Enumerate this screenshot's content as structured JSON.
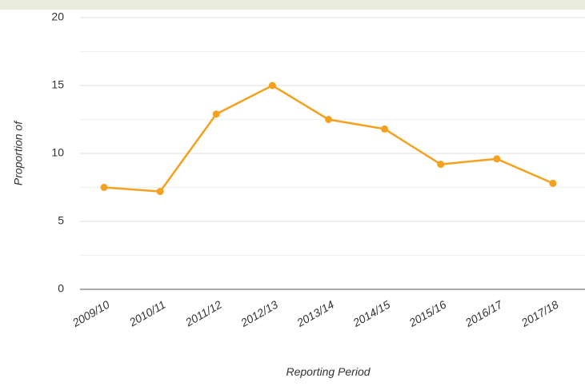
{
  "chart_data": {
    "type": "line",
    "y_label": "Proportion of",
    "x_label": "Reporting Period",
    "categories": [
      "2009/10",
      "2010/11",
      "2011/12",
      "2012/13",
      "2013/14",
      "2014/15",
      "2015/16",
      "2016/17",
      "2017/18"
    ],
    "series": [
      {
        "color": "#f4a11f",
        "values": [
          7.5,
          7.2,
          12.9,
          15.0,
          12.5,
          11.8,
          9.2,
          9.6,
          7.8
        ]
      }
    ],
    "ylim": [
      0,
      20
    ],
    "yticks": [
      0,
      5,
      10,
      15,
      20
    ],
    "minor_yticks": [
      2.5,
      7.5,
      12.5,
      17.5
    ],
    "grid": true
  }
}
